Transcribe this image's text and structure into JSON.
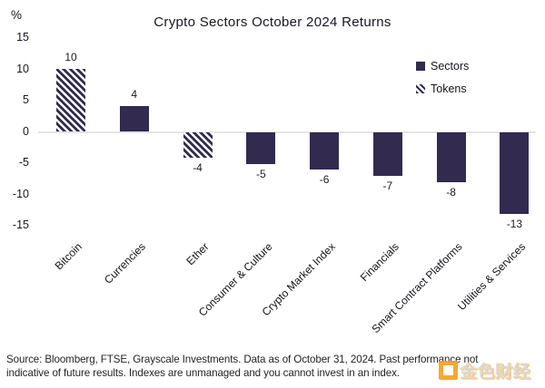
{
  "chart_data": {
    "type": "bar",
    "title": "Crypto Sectors October 2024 Returns",
    "ylabel": "%",
    "xlabel": "",
    "ylim": [
      -15,
      15
    ],
    "y_ticks": [
      15,
      10,
      5,
      0,
      -5,
      -10,
      -15
    ],
    "grid": "zero-line-only",
    "legend_position": "top-right",
    "categories": [
      "Bitcoin",
      "Currencies",
      "Ether",
      "Consumer & Culture",
      "Crypto Market Index",
      "Financials",
      "Smart Contract Platforms",
      "Utilities & Services"
    ],
    "values": [
      10,
      4,
      -4,
      -5,
      -6,
      -7,
      -8,
      -13
    ],
    "bar_styles": [
      "hatched",
      "solid",
      "hatched",
      "solid",
      "solid",
      "solid",
      "solid",
      "solid"
    ],
    "series_legend": [
      {
        "label": "Sectors",
        "swatch": "solid"
      },
      {
        "label": "Tokens",
        "swatch": "hatched"
      }
    ],
    "colors": {
      "bar": "#322b4f",
      "hatch_background": "#ffffff",
      "zero_line": "#e4e4e4"
    }
  },
  "footer": {
    "source_line1": "Source: Bloomberg, FTSE, Grayscale Investments. Data as of October 31, 2024. Past performance not",
    "source_line2": "indicative of future results. Indexes are unmanaged and you cannot invest in an index.",
    "watermark": {
      "text": "金色财经",
      "icon": "jinse-finance-square-logo",
      "accent_color": "#f6a11f"
    }
  }
}
